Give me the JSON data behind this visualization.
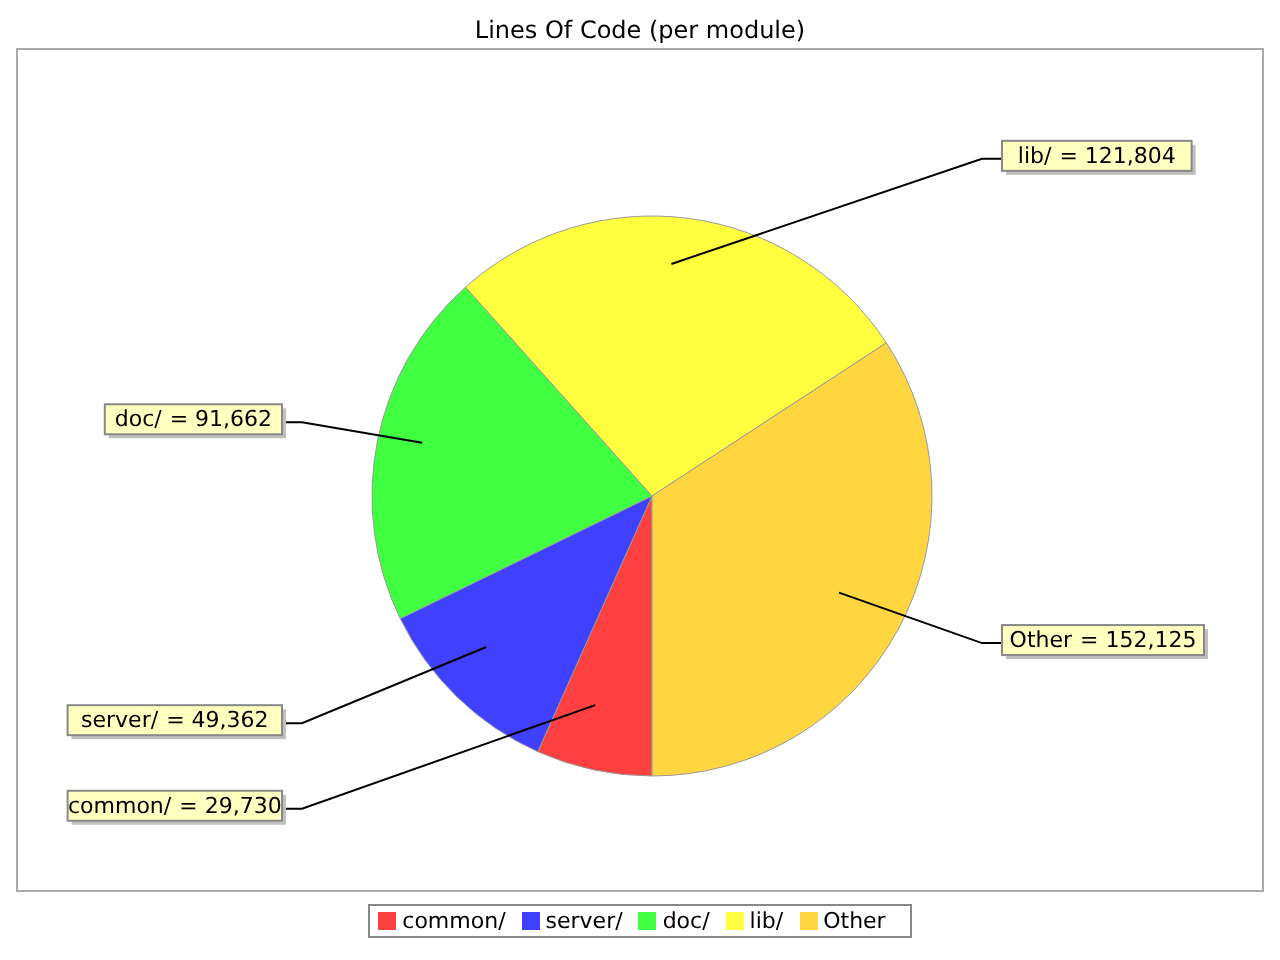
{
  "chart_data": {
    "type": "pie",
    "title": "Lines Of Code (per module)",
    "categories": [
      "common/",
      "server/",
      "doc/",
      "lib/",
      "Other"
    ],
    "values": [
      29730,
      49362,
      91662,
      121804,
      152125
    ],
    "colors": [
      "#ff4040",
      "#4040ff",
      "#40ff40",
      "#ffff40",
      "#ffd540"
    ],
    "value_labels": [
      "= 29,730",
      "= 49,362",
      "= 91,662",
      "= 121,804",
      "= 152,125"
    ],
    "legend": "bottom"
  }
}
